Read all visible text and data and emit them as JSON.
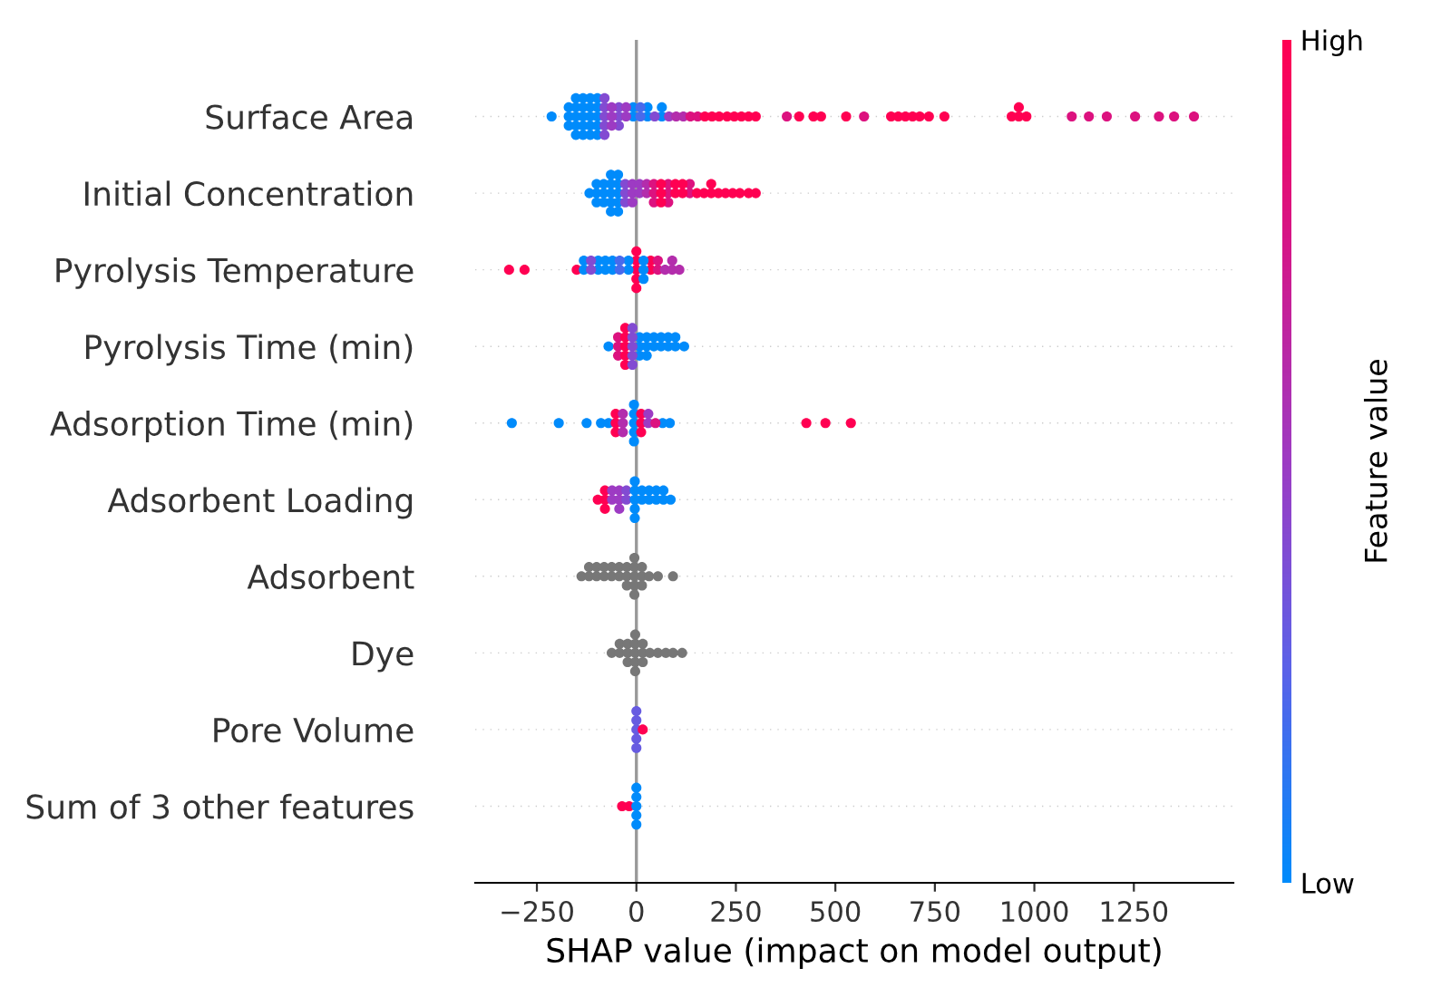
{
  "chart_data": {
    "type": "scatter",
    "orientation": "horizontal",
    "categories": [
      "Surface Area",
      "Initial Concentration",
      "Pyrolysis Temperature",
      "Pyrolysis Time (min)",
      "Adsorption Time (min)",
      "Adsorbent Loading",
      "Adsorbent",
      "Dye",
      "Pore Volume",
      "Sum of 3 other features"
    ],
    "xlabel": "SHAP value (impact on model output)",
    "xlim": [
      -405,
      1500
    ],
    "xticks": [
      {
        "value": -250,
        "label": "−250"
      },
      0,
      250,
      500,
      750,
      1000,
      1250
    ],
    "clabel": "Feature value",
    "clim": [
      0,
      1
    ],
    "cticks": [
      {
        "value": 0,
        "label": "Low"
      },
      {
        "value": 1,
        "label": "High"
      }
    ],
    "grid": "y",
    "marker": "circle",
    "ref_lines": [
      {
        "axis": "x",
        "value": 0,
        "color": "#999999"
      }
    ],
    "series": [
      {
        "x": [
          "Surface Area",
          "Surface Area",
          "Surface Area",
          "Surface Area",
          "Surface Area",
          "Surface Area",
          "Surface Area",
          "Surface Area",
          "Surface Area",
          "Surface Area",
          "Surface Area",
          "Surface Area",
          "Surface Area",
          "Surface Area",
          "Surface Area",
          "Surface Area",
          "Surface Area",
          "Surface Area",
          "Surface Area",
          "Surface Area",
          "Surface Area",
          "Surface Area",
          "Surface Area",
          "Surface Area",
          "Surface Area",
          "Surface Area",
          "Surface Area",
          "Surface Area",
          "Surface Area",
          "Surface Area"
        ],
        "values": [
          -213,
          -170,
          -170,
          -170,
          -152,
          -152,
          -152,
          -152,
          -152,
          -134,
          -134,
          -134,
          -134,
          -134,
          -116,
          -116,
          -116,
          -116,
          -116,
          -98,
          -98,
          -98,
          -98,
          -98,
          -8,
          -8,
          28,
          28,
          64,
          64
        ],
        "cvalues": [
          0,
          0,
          0,
          0,
          0,
          0,
          0,
          0,
          0,
          0,
          0,
          0,
          0,
          0,
          0,
          0,
          0,
          0,
          0,
          0,
          0,
          0,
          0,
          0,
          0,
          0,
          0,
          0,
          0,
          0
        ]
      },
      {
        "x": [
          "Surface Area",
          "Surface Area"
        ],
        "values": [
          10,
          10
        ],
        "cvalues": [
          0.2,
          0.2
        ]
      },
      {
        "x": [
          "Surface Area",
          "Surface Area",
          "Surface Area",
          "Surface Area",
          "Surface Area",
          "Surface Area",
          "Surface Area",
          "Surface Area",
          "Surface Area"
        ],
        "values": [
          -80,
          -80,
          -80,
          -80,
          -80,
          -44,
          -44,
          -44,
          46
        ],
        "cvalues": [
          0.4,
          0.4,
          0.4,
          0.4,
          0.4,
          0.4,
          0.4,
          0.4,
          0.4
        ]
      },
      {
        "x": [
          "Surface Area",
          "Surface Area",
          "Surface Area",
          "Surface Area",
          "Surface Area",
          "Surface Area"
        ],
        "values": [
          -62,
          -62,
          -62,
          -26,
          -26,
          82
        ],
        "cvalues": [
          0.5,
          0.5,
          0.5,
          0.5,
          0.5,
          0.5
        ]
      },
      {
        "x": [
          "Surface Area",
          "Surface Area"
        ],
        "values": [
          100,
          118
        ],
        "cvalues": [
          0.6,
          0.6
        ]
      },
      {
        "x": [
          "Surface Area",
          "Surface Area",
          "Surface Area",
          "Surface Area",
          "Surface Area",
          "Surface Area",
          "Surface Area",
          "Surface Area",
          "Surface Area",
          "Surface Area",
          "Surface Area"
        ],
        "values": [
          136,
          154,
          378,
          572,
          1094,
          1137,
          1182,
          1253,
          1313,
          1351,
          1401
        ],
        "cvalues": [
          0.8,
          0.8,
          0.8,
          0.8,
          0.8,
          0.8,
          0.8,
          0.8,
          0.8,
          0.8,
          0.8
        ]
      },
      {
        "x": [
          "Surface Area",
          "Surface Area",
          "Surface Area",
          "Surface Area",
          "Surface Area",
          "Surface Area",
          "Surface Area",
          "Surface Area",
          "Surface Area",
          "Surface Area",
          "Surface Area",
          "Surface Area",
          "Surface Area",
          "Surface Area",
          "Surface Area",
          "Surface Area",
          "Surface Area",
          "Surface Area",
          "Surface Area",
          "Surface Area",
          "Surface Area",
          "Surface Area",
          "Surface Area"
        ],
        "values": [
          172,
          190,
          208,
          228,
          246,
          264,
          282,
          300,
          409,
          445,
          464,
          527,
          640,
          658,
          676,
          694,
          712,
          735,
          774,
          943,
          961,
          961,
          980
        ],
        "cvalues": [
          1,
          1,
          1,
          1,
          1,
          1,
          1,
          1,
          1,
          1,
          1,
          1,
          1,
          1,
          1,
          1,
          1,
          1,
          1,
          1,
          1,
          1,
          1
        ]
      },
      {
        "x": [
          "Initial Concentration",
          "Initial Concentration",
          "Initial Concentration",
          "Initial Concentration",
          "Initial Concentration",
          "Initial Concentration",
          "Initial Concentration",
          "Initial Concentration",
          "Initial Concentration",
          "Initial Concentration",
          "Initial Concentration",
          "Initial Concentration",
          "Initial Concentration",
          "Initial Concentration",
          "Initial Concentration",
          "Initial Concentration",
          "Initial Concentration"
        ],
        "values": [
          -118,
          -100,
          -100,
          -100,
          -82,
          -82,
          -82,
          -64,
          -64,
          -64,
          -64,
          -64,
          -46,
          -46,
          -46,
          -46,
          -46
        ],
        "cvalues": [
          0,
          0,
          0,
          0,
          0,
          0,
          0,
          0,
          0,
          0,
          0,
          0,
          0,
          0,
          0,
          0,
          0
        ]
      },
      {
        "x": [
          "Initial Concentration",
          "Initial Concentration",
          "Initial Concentration"
        ],
        "values": [
          -28,
          -28,
          -28
        ],
        "cvalues": [
          0.4,
          0.4,
          0.4
        ]
      },
      {
        "x": [
          "Initial Concentration",
          "Initial Concentration",
          "Initial Concentration",
          "Initial Concentration",
          "Initial Concentration"
        ],
        "values": [
          -10,
          -10,
          -10,
          8,
          8
        ],
        "cvalues": [
          0.5,
          0.5,
          0.5,
          0.5,
          0.5
        ]
      },
      {
        "x": [
          "Initial Concentration",
          "Initial Concentration"
        ],
        "values": [
          26,
          26
        ],
        "cvalues": [
          0.6,
          0.6
        ]
      },
      {
        "x": [
          "Initial Concentration",
          "Initial Concentration",
          "Initial Concentration",
          "Initial Concentration",
          "Initial Concentration",
          "Initial Concentration",
          "Initial Concentration",
          "Initial Concentration"
        ],
        "values": [
          44,
          44,
          44,
          80,
          80,
          80,
          134,
          134
        ],
        "cvalues": [
          0.8,
          0.8,
          0.8,
          0.8,
          0.8,
          0.8,
          0.8,
          0.8
        ]
      },
      {
        "x": [
          "Initial Concentration",
          "Initial Concentration",
          "Initial Concentration",
          "Initial Concentration",
          "Initial Concentration",
          "Initial Concentration",
          "Initial Concentration",
          "Initial Concentration",
          "Initial Concentration",
          "Initial Concentration",
          "Initial Concentration",
          "Initial Concentration",
          "Initial Concentration",
          "Initial Concentration",
          "Initial Concentration",
          "Initial Concentration",
          "Initial Concentration"
        ],
        "values": [
          62,
          62,
          62,
          98,
          98,
          116,
          116,
          152,
          170,
          188,
          188,
          206,
          224,
          242,
          260,
          282,
          300
        ],
        "cvalues": [
          1,
          1,
          1,
          1,
          1,
          1,
          1,
          1,
          1,
          1,
          1,
          1,
          1,
          1,
          1,
          1,
          1
        ]
      },
      {
        "x": [
          "Pyrolysis Temperature",
          "Pyrolysis Temperature",
          "Pyrolysis Temperature",
          "Pyrolysis Temperature",
          "Pyrolysis Temperature",
          "Pyrolysis Temperature",
          "Pyrolysis Temperature",
          "Pyrolysis Temperature",
          "Pyrolysis Temperature",
          "Pyrolysis Temperature"
        ],
        "values": [
          -320,
          -281,
          -150,
          0,
          0,
          0,
          0,
          0,
          36,
          36
        ],
        "cvalues": [
          1,
          1,
          1,
          1,
          1,
          1,
          1,
          1,
          1,
          1
        ]
      },
      {
        "x": [
          "Pyrolysis Temperature",
          "Pyrolysis Temperature",
          "Pyrolysis Temperature",
          "Pyrolysis Temperature",
          "Pyrolysis Temperature",
          "Pyrolysis Temperature",
          "Pyrolysis Temperature",
          "Pyrolysis Temperature",
          "Pyrolysis Temperature",
          "Pyrolysis Temperature",
          "Pyrolysis Temperature",
          "Pyrolysis Temperature",
          "Pyrolysis Temperature"
        ],
        "values": [
          -132,
          -132,
          -96,
          -96,
          -78,
          -78,
          -60,
          -60,
          -20,
          -20,
          18,
          18,
          18
        ],
        "cvalues": [
          0,
          0,
          0,
          0,
          0,
          0,
          0,
          0,
          0,
          0,
          0,
          0,
          0
        ]
      },
      {
        "x": [
          "Pyrolysis Temperature",
          "Pyrolysis Temperature"
        ],
        "values": [
          -114,
          -114
        ],
        "cvalues": [
          0.4,
          0.4
        ]
      },
      {
        "x": [
          "Pyrolysis Temperature",
          "Pyrolysis Temperature"
        ],
        "values": [
          -42,
          -42
        ],
        "cvalues": [
          0.2,
          0.2
        ]
      },
      {
        "x": [
          "Pyrolysis Temperature",
          "Pyrolysis Temperature"
        ],
        "values": [
          54,
          54
        ],
        "cvalues": [
          0.8,
          0.8
        ]
      },
      {
        "x": [
          "Pyrolysis Temperature",
          "Pyrolysis Temperature",
          "Pyrolysis Temperature",
          "Pyrolysis Temperature"
        ],
        "values": [
          72,
          90,
          90,
          108
        ],
        "cvalues": [
          0.6,
          0.6,
          0.6,
          0.6
        ]
      },
      {
        "x": [
          "Pyrolysis Time (min)",
          "Pyrolysis Time (min)",
          "Pyrolysis Time (min)",
          "Pyrolysis Time (min)",
          "Pyrolysis Time (min)",
          "Pyrolysis Time (min)",
          "Pyrolysis Time (min)",
          "Pyrolysis Time (min)",
          "Pyrolysis Time (min)",
          "Pyrolysis Time (min)",
          "Pyrolysis Time (min)",
          "Pyrolysis Time (min)",
          "Pyrolysis Time (min)",
          "Pyrolysis Time (min)",
          "Pyrolysis Time (min)",
          "Pyrolysis Time (min)"
        ],
        "values": [
          -70,
          8,
          8,
          8,
          26,
          26,
          26,
          44,
          44,
          62,
          62,
          80,
          80,
          98,
          98,
          120
        ],
        "cvalues": [
          0,
          0,
          0,
          0,
          0,
          0,
          0,
          0,
          0,
          0,
          0,
          0,
          0,
          0,
          0,
          0
        ]
      },
      {
        "x": [
          "Pyrolysis Time (min)",
          "Pyrolysis Time (min)",
          "Pyrolysis Time (min)"
        ],
        "values": [
          -46,
          -46,
          -46
        ],
        "cvalues": [
          0.8,
          0.8,
          0.8
        ]
      },
      {
        "x": [
          "Pyrolysis Time (min)",
          "Pyrolysis Time (min)",
          "Pyrolysis Time (min)",
          "Pyrolysis Time (min)",
          "Pyrolysis Time (min)"
        ],
        "values": [
          -28,
          -28,
          -28,
          -28,
          -28
        ],
        "cvalues": [
          1,
          1,
          1,
          1,
          1
        ]
      },
      {
        "x": [
          "Pyrolysis Time (min)",
          "Pyrolysis Time (min)",
          "Pyrolysis Time (min)",
          "Pyrolysis Time (min)",
          "Pyrolysis Time (min)"
        ],
        "values": [
          -10,
          -10,
          -10,
          -10,
          -10
        ],
        "cvalues": [
          0.4,
          0.4,
          0.4,
          0.4,
          0.4
        ]
      },
      {
        "x": [
          "Adsorption Time (min)",
          "Adsorption Time (min)",
          "Adsorption Time (min)",
          "Adsorption Time (min)",
          "Adsorption Time (min)",
          "Adsorption Time (min)",
          "Adsorption Time (min)",
          "Adsorption Time (min)",
          "Adsorption Time (min)",
          "Adsorption Time (min)",
          "Adsorption Time (min)",
          "Adsorption Time (min)"
        ],
        "values": [
          -313,
          -195,
          -125,
          -89,
          -70,
          -6,
          -6,
          -6,
          -6,
          -6,
          66,
          84
        ],
        "cvalues": [
          0,
          0,
          0,
          0,
          0,
          0,
          0,
          0,
          0,
          0,
          0,
          0
        ]
      },
      {
        "x": [
          "Adsorption Time (min)",
          "Adsorption Time (min)",
          "Adsorption Time (min)",
          "Adsorption Time (min)",
          "Adsorption Time (min)",
          "Adsorption Time (min)",
          "Adsorption Time (min)",
          "Adsorption Time (min)",
          "Adsorption Time (min)"
        ],
        "values": [
          -52,
          -52,
          -52,
          12,
          12,
          12,
          427,
          475,
          539
        ],
        "cvalues": [
          1,
          1,
          1,
          1,
          1,
          1,
          1,
          1,
          1
        ]
      },
      {
        "x": [
          "Adsorption Time (min)",
          "Adsorption Time (min)",
          "Adsorption Time (min)"
        ],
        "values": [
          -34,
          -34,
          -34
        ],
        "cvalues": [
          0.6,
          0.6,
          0.6
        ]
      },
      {
        "x": [
          "Adsorption Time (min)",
          "Adsorption Time (min)"
        ],
        "values": [
          30,
          30
        ],
        "cvalues": [
          0.5,
          0.5
        ]
      },
      {
        "x": [
          "Adsorption Time (min)"
        ],
        "values": [
          48
        ],
        "cvalues": [
          0.8
        ]
      },
      {
        "x": [
          "Adsorbent Loading",
          "Adsorbent Loading",
          "Adsorbent Loading",
          "Adsorbent Loading"
        ],
        "values": [
          -97,
          -79,
          -79,
          -79
        ],
        "cvalues": [
          1,
          1,
          1,
          1
        ]
      },
      {
        "x": [
          "Adsorbent Loading",
          "Adsorbent Loading",
          "Adsorbent Loading",
          "Adsorbent Loading",
          "Adsorbent Loading"
        ],
        "values": [
          -61,
          -61,
          -43,
          -43,
          -43
        ],
        "cvalues": [
          0.5,
          0.5,
          0.5,
          0.5,
          0.5
        ]
      },
      {
        "x": [
          "Adsorbent Loading",
          "Adsorbent Loading"
        ],
        "values": [
          -25,
          -25
        ],
        "cvalues": [
          0.4,
          0.4
        ]
      },
      {
        "x": [
          "Adsorbent Loading",
          "Adsorbent Loading",
          "Adsorbent Loading",
          "Adsorbent Loading",
          "Adsorbent Loading",
          "Adsorbent Loading",
          "Adsorbent Loading",
          "Adsorbent Loading",
          "Adsorbent Loading",
          "Adsorbent Loading",
          "Adsorbent Loading",
          "Adsorbent Loading",
          "Adsorbent Loading",
          "Adsorbent Loading"
        ],
        "values": [
          -4,
          -4,
          -4,
          -4,
          -4,
          14,
          14,
          32,
          32,
          50,
          50,
          68,
          68,
          86
        ],
        "cvalues": [
          0,
          0,
          0,
          0,
          0,
          0,
          0,
          0,
          0,
          0,
          0,
          0,
          0,
          0
        ]
      },
      {
        "color": "#777777",
        "x": [
          "Adsorbent",
          "Adsorbent",
          "Adsorbent",
          "Adsorbent",
          "Adsorbent",
          "Adsorbent",
          "Adsorbent",
          "Adsorbent",
          "Adsorbent",
          "Adsorbent",
          "Adsorbent",
          "Adsorbent",
          "Adsorbent",
          "Adsorbent",
          "Adsorbent",
          "Adsorbent",
          "Adsorbent",
          "Adsorbent",
          "Adsorbent",
          "Adsorbent",
          "Adsorbent",
          "Adsorbent",
          "Adsorbent",
          "Adsorbent",
          "Adsorbent"
        ],
        "values": [
          -138,
          -119,
          -119,
          -100,
          -100,
          -81,
          -81,
          -62,
          -62,
          -43,
          -43,
          -24,
          -24,
          -24,
          -5,
          -5,
          -5,
          -5,
          -5,
          14,
          14,
          14,
          32,
          54,
          92
        ]
      },
      {
        "color": "#777777",
        "x": [
          "Dye",
          "Dye",
          "Dye",
          "Dye",
          "Dye",
          "Dye",
          "Dye",
          "Dye",
          "Dye",
          "Dye",
          "Dye",
          "Dye",
          "Dye",
          "Dye",
          "Dye",
          "Dye",
          "Dye",
          "Dye",
          "Dye"
        ],
        "values": [
          -62,
          -42,
          -42,
          -22,
          -22,
          -22,
          -3,
          -3,
          -3,
          -3,
          -3,
          16,
          16,
          16,
          34,
          54,
          74,
          92,
          115
        ]
      },
      {
        "x": [
          "Pore Volume",
          "Pore Volume",
          "Pore Volume",
          "Pore Volume",
          "Pore Volume"
        ],
        "values": [
          0,
          0,
          0,
          0,
          0
        ],
        "cvalues": [
          0.3,
          0.3,
          0.3,
          0.3,
          0.3
        ]
      },
      {
        "x": [
          "Pore Volume"
        ],
        "values": [
          16
        ],
        "cvalues": [
          1
        ]
      },
      {
        "x": [
          "Sum of 3 other features",
          "Sum of 3 other features"
        ],
        "values": [
          -36,
          -18
        ],
        "cvalues": [
          1,
          1
        ]
      },
      {
        "x": [
          "Sum of 3 other features",
          "Sum of 3 other features",
          "Sum of 3 other features",
          "Sum of 3 other features",
          "Sum of 3 other features"
        ],
        "values": [
          0,
          0,
          0,
          0,
          0
        ],
        "cvalues": [
          0,
          0,
          0,
          0,
          0
        ]
      }
    ]
  }
}
